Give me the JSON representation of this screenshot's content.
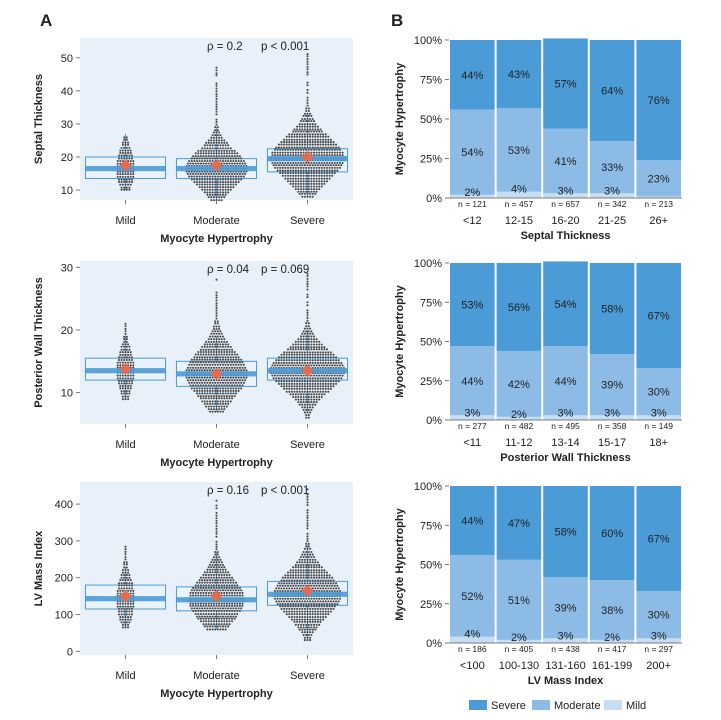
{
  "panels": {
    "a": "A",
    "b": "B"
  },
  "chart_data": [
    {
      "type": "box",
      "id": "septal",
      "ylabel": "Septal Thickness",
      "xlabel": "Myocyte Hypertrophy",
      "ylim": [
        7,
        56
      ],
      "yticks": [
        10,
        20,
        30,
        40,
        50
      ],
      "rho": "ρ = 0.2",
      "p": "p < 0.001",
      "groups": [
        {
          "name": "Mild",
          "q1": 13.5,
          "median": 16.5,
          "q3": 20,
          "mean": 17.5,
          "wlo": 10,
          "whi": 27,
          "spread": 3,
          "ymin": 10,
          "ymax": 26
        },
        {
          "name": "Moderate",
          "q1": 13.5,
          "median": 16.5,
          "q3": 19.5,
          "mean": 17.5,
          "wlo": 7,
          "whi": 29,
          "spread": 10,
          "ymin": 7,
          "ymax": 47
        },
        {
          "name": "Severe",
          "q1": 15.5,
          "median": 19.5,
          "q3": 22.5,
          "mean": 20,
          "wlo": 8,
          "whi": 33,
          "spread": 12,
          "ymin": 8,
          "ymax": 52
        }
      ]
    },
    {
      "type": "box",
      "id": "posterior",
      "ylabel": "Posterior Wall Thickness",
      "xlabel": "Myocyte Hypertrophy",
      "ylim": [
        5,
        31
      ],
      "yticks": [
        10,
        20,
        30
      ],
      "rho": "ρ = 0.04",
      "p": "p = 0.069",
      "groups": [
        {
          "name": "Mild",
          "q1": 12,
          "median": 13.5,
          "q3": 15.5,
          "mean": 13.8,
          "wlo": 9,
          "whi": 19,
          "spread": 3,
          "ymin": 9,
          "ymax": 21
        },
        {
          "name": "Moderate",
          "q1": 11,
          "median": 13,
          "q3": 15,
          "mean": 13,
          "wlo": 7,
          "whi": 19,
          "spread": 10,
          "ymin": 7,
          "ymax": 28
        },
        {
          "name": "Severe",
          "q1": 12,
          "median": 13.5,
          "q3": 15.5,
          "mean": 13.5,
          "wlo": 7,
          "whi": 20,
          "spread": 12,
          "ymin": 6,
          "ymax": 29
        }
      ]
    },
    {
      "type": "box",
      "id": "lvmass",
      "ylabel": "LV Mass Index",
      "xlabel": "Myocyte Hypertrophy",
      "ylim": [
        -10,
        460
      ],
      "yticks": [
        0,
        100,
        200,
        300,
        400
      ],
      "rho": "ρ = 0.16",
      "p": "p < 0.001",
      "groups": [
        {
          "name": "Mild",
          "q1": 115,
          "median": 143,
          "q3": 180,
          "mean": 150,
          "wlo": 65,
          "whi": 230,
          "spread": 3,
          "ymin": 65,
          "ymax": 285
        },
        {
          "name": "Moderate",
          "q1": 110,
          "median": 140,
          "q3": 175,
          "mean": 150,
          "wlo": 60,
          "whi": 270,
          "spread": 9,
          "ymin": 60,
          "ymax": 410
        },
        {
          "name": "Severe",
          "q1": 125,
          "median": 155,
          "q3": 190,
          "mean": 165,
          "wlo": 30,
          "whi": 290,
          "spread": 11,
          "ymin": 30,
          "ymax": 440
        }
      ]
    },
    {
      "type": "stacked-bar",
      "id": "septal-pct",
      "ylabel": "Myocyte Hypertrophy",
      "xlabel": "Septal Thickness",
      "yticks": [
        "0%",
        "25%",
        "50%",
        "75%",
        "100%"
      ],
      "categories": [
        "<12",
        "12-15",
        "16-20",
        "21-25",
        "26+"
      ],
      "n": [
        "n = 121",
        "n = 457",
        "n = 657",
        "n = 342",
        "n = 213"
      ],
      "series": [
        {
          "name": "Mild",
          "values": [
            2,
            4,
            3,
            3,
            1
          ],
          "labels": [
            "2%",
            "4%",
            "3%",
            "3%",
            ""
          ]
        },
        {
          "name": "Moderate",
          "values": [
            54,
            53,
            41,
            33,
            23
          ],
          "labels": [
            "54%",
            "53%",
            "41%",
            "33%",
            "23%"
          ]
        },
        {
          "name": "Severe",
          "values": [
            44,
            43,
            57,
            64,
            76
          ],
          "labels": [
            "44%",
            "43%",
            "57%",
            "64%",
            "76%"
          ]
        }
      ]
    },
    {
      "type": "stacked-bar",
      "id": "posterior-pct",
      "ylabel": "Myocyte Hypertrophy",
      "xlabel": "Posterior Wall Thickness",
      "yticks": [
        "0%",
        "25%",
        "50%",
        "75%",
        "100%"
      ],
      "categories": [
        "<11",
        "11-12",
        "13-14",
        "15-17",
        "18+"
      ],
      "n": [
        "n = 277",
        "n = 482",
        "n = 495",
        "n = 358",
        "n = 149"
      ],
      "series": [
        {
          "name": "Mild",
          "values": [
            3,
            2,
            3,
            3,
            3
          ],
          "labels": [
            "3%",
            "2%",
            "3%",
            "3%",
            "3%"
          ]
        },
        {
          "name": "Moderate",
          "values": [
            44,
            42,
            44,
            39,
            30
          ],
          "labels": [
            "44%",
            "42%",
            "44%",
            "39%",
            "30%"
          ]
        },
        {
          "name": "Severe",
          "values": [
            53,
            56,
            54,
            58,
            67
          ],
          "labels": [
            "53%",
            "56%",
            "54%",
            "58%",
            "67%"
          ]
        }
      ]
    },
    {
      "type": "stacked-bar",
      "id": "lvmass-pct",
      "ylabel": "Myocyte Hypertrophy",
      "xlabel": "LV Mass Index",
      "yticks": [
        "0%",
        "25%",
        "50%",
        "75%",
        "100%"
      ],
      "categories": [
        "<100",
        "100-130",
        "131-160",
        "161-199",
        "200+"
      ],
      "n": [
        "n = 186",
        "n = 405",
        "n = 438",
        "n = 417",
        "n = 297"
      ],
      "series": [
        {
          "name": "Mild",
          "values": [
            4,
            2,
            3,
            2,
            3
          ],
          "labels": [
            "4%",
            "2%",
            "3%",
            "2%",
            "3%"
          ]
        },
        {
          "name": "Moderate",
          "values": [
            52,
            51,
            39,
            38,
            30
          ],
          "labels": [
            "52%",
            "51%",
            "39%",
            "38%",
            "30%"
          ]
        },
        {
          "name": "Severe",
          "values": [
            44,
            47,
            58,
            60,
            67
          ],
          "labels": [
            "44%",
            "47%",
            "58%",
            "60%",
            "67%"
          ]
        }
      ]
    }
  ],
  "legend": [
    {
      "name": "Severe",
      "color": "#4a9bd6"
    },
    {
      "name": "Moderate",
      "color": "#8cbce6"
    },
    {
      "name": "Mild",
      "color": "#c6def4"
    }
  ],
  "colors": {
    "panel_bg": "#e8f0fa",
    "box_fill": "#eaf3fb",
    "box_edge": "#4a9bd6",
    "median_band": "#4a9bd6",
    "dots": "#4a4a4a",
    "mean_marker": "#e56a4f",
    "severe": "#4a9bd6",
    "moderate": "#8cbce6",
    "mild": "#c6def4"
  }
}
